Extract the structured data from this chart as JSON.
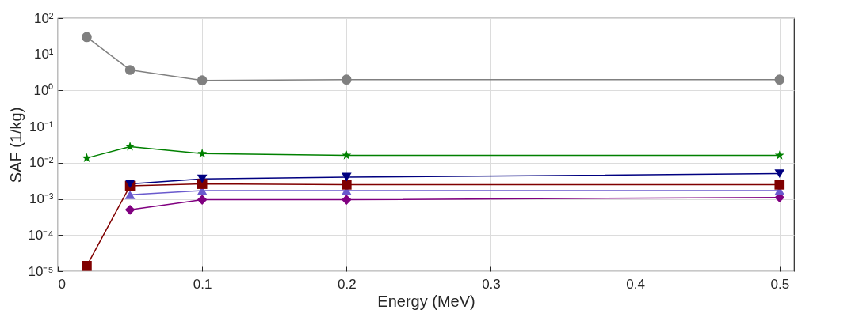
{
  "chart_data": {
    "type": "line",
    "xlabel": "Energy (MeV)",
    "ylabel": "SAF (1/kg)",
    "log": "y",
    "grid": true,
    "legend": false,
    "line_style": "solid",
    "xlim": [
      0,
      0.51
    ],
    "xticks": [
      0,
      0.1,
      0.2,
      0.3,
      0.4,
      0.5
    ],
    "ylim": [
      1e-05,
      100
    ],
    "yticks": [
      {
        "value": 1e-05,
        "label": "10⁻⁵"
      },
      {
        "value": 0.0001,
        "label": "10⁻⁴"
      },
      {
        "value": 0.001,
        "label": "10⁻³"
      },
      {
        "value": 0.01,
        "label": "10⁻²"
      },
      {
        "value": 0.1,
        "label": "10⁻¹"
      },
      {
        "value": 1,
        "label": "10⁰"
      },
      {
        "value": 10,
        "label": "10¹"
      },
      {
        "value": 100,
        "label": "10²"
      }
    ],
    "series": [
      {
        "color": "#808080",
        "marker": "circle",
        "x": [
          0.02,
          0.05,
          0.1,
          0.2,
          0.5
        ],
        "values": [
          30,
          3.7,
          1.9,
          2.0,
          2.0
        ]
      },
      {
        "color": "#008000",
        "marker": "star",
        "x": [
          0.02,
          0.05,
          0.1,
          0.2,
          0.5
        ],
        "values": [
          0.0135,
          0.028,
          0.018,
          0.016,
          0.016
        ]
      },
      {
        "color": "#000080",
        "marker": "triangle-down",
        "x": [
          0.05,
          0.1,
          0.2,
          0.5
        ],
        "values": [
          0.0026,
          0.0036,
          0.004,
          0.005
        ]
      },
      {
        "color": "#800000",
        "marker": "square",
        "x": [
          0.02,
          0.05,
          0.1,
          0.2,
          0.5
        ],
        "values": [
          1.4e-05,
          0.0023,
          0.0026,
          0.0025,
          0.0025
        ]
      },
      {
        "color": "#6a5acd",
        "marker": "triangle",
        "x": [
          0.05,
          0.1,
          0.2,
          0.5
        ],
        "values": [
          0.0013,
          0.0017,
          0.0017,
          0.0017
        ]
      },
      {
        "color": "#800080",
        "marker": "diamond",
        "x": [
          0.05,
          0.1,
          0.2,
          0.5
        ],
        "values": [
          0.0005,
          0.00095,
          0.00095,
          0.0011
        ]
      }
    ]
  }
}
